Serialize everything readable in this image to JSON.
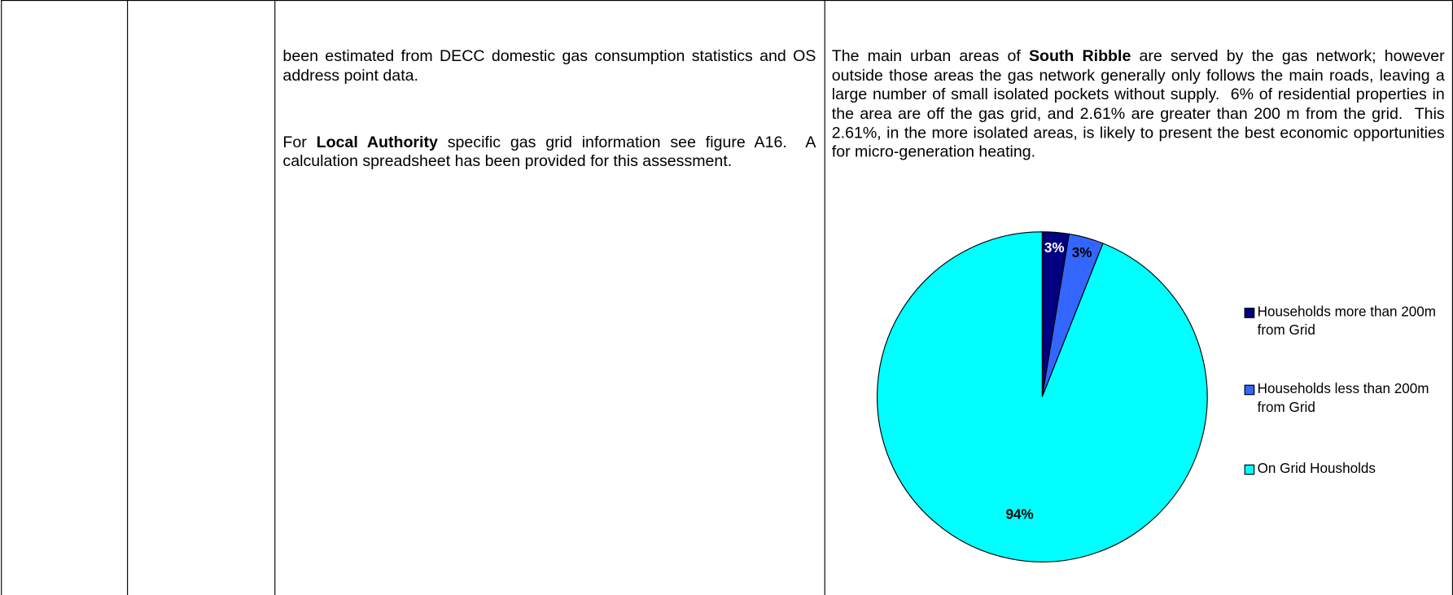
{
  "column_3": {
    "paragraphs": [
      [
        "been estimated from DECC domestic gas consumption statistics and OS address point data."
      ],
      [
        "For ",
        "Local Authority",
        " specific gas grid information see figure A16.  A calculation spreadsheet has been provided for this assessment."
      ]
    ]
  },
  "column_4": {
    "paragraph": [
      "The main urban areas of ",
      "South Ribble",
      " are served by the gas network; however outside those areas the gas network generally only follows the main roads, leaving a large number of small isolated pockets without supply.  6% of residential properties in the area are off the gas grid, and 2.61% are greater than 200 m from the grid.  This 2.61%, in the more isolated areas, is likely to present the best economic opportunities for micro-generation heating."
    ]
  },
  "chart_data": {
    "type": "pie",
    "categories": [
      "Households more than 200m from Grid",
      "Households less than 200m from Grid",
      "On Grid Housholds"
    ],
    "values": [
      2.61,
      3.39,
      94
    ],
    "value_labels": [
      "3%",
      "3%",
      "94%"
    ],
    "colors": [
      "#000080",
      "#3366ff",
      "#00ffff"
    ],
    "legend": "right"
  }
}
